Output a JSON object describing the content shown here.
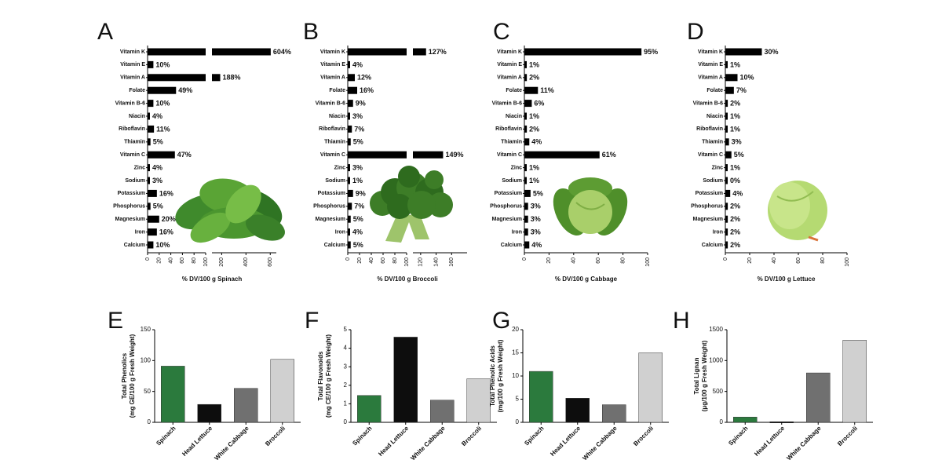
{
  "colors": {
    "bar": "#000000",
    "spinach": "#2b7a3d",
    "lettuce": "#0d0d0d",
    "cabbage": "#707070",
    "broccoli": "#d0d0d0"
  },
  "chart_data": [
    {
      "panel": "A",
      "type": "bar",
      "orientation": "horizontal",
      "xlabel": "% DV/100 g Spinach",
      "axis_break": true,
      "ticks_low": [
        "0",
        "20",
        "40",
        "60",
        "80",
        "100"
      ],
      "ticks_high": [
        "200",
        "400",
        "600"
      ],
      "ticks_high_values": [
        200,
        400,
        600
      ],
      "illustration": "spinach",
      "categories": [
        "Vitamin K",
        "Vitamin E",
        "Vitamin A",
        "Folate",
        "Vitamin B-6",
        "Niacin",
        "Riboflavin",
        "Thiamin",
        "Vitamin C",
        "Zinc",
        "Sodium",
        "Potassium",
        "Phosphorus",
        "Magnesium",
        "Iron",
        "Calcium"
      ],
      "values": [
        604,
        10,
        188,
        49,
        10,
        4,
        11,
        5,
        47,
        4,
        3,
        16,
        5,
        20,
        16,
        10
      ],
      "labels": [
        "604%",
        "10%",
        "188%",
        "49%",
        "10%",
        "4%",
        "11%",
        "5%",
        "47%",
        "4%",
        "3%",
        "16%",
        "5%",
        "20%",
        "16%",
        "10%"
      ]
    },
    {
      "panel": "B",
      "type": "bar",
      "orientation": "horizontal",
      "xlabel": "% DV/100 g  Broccoli",
      "axis_break": true,
      "ticks_low": [
        "0",
        "20",
        "40",
        "60",
        "80",
        "100"
      ],
      "ticks_high": [
        "120",
        "140",
        "160"
      ],
      "ticks_high_values": [
        120,
        140,
        160
      ],
      "illustration": "broccoli",
      "categories": [
        "Vitamin K",
        "Vitamin E",
        "Vitamin A",
        "Folate",
        "Vitamin B-6",
        "Niacin",
        "Riboflavin",
        "Thiamin",
        "Vitamin C",
        "Zinc",
        "Sodium",
        "Potassium",
        "Phosphorus",
        "Magnesium",
        "Iron",
        "Calcium"
      ],
      "values": [
        127,
        4,
        12,
        16,
        9,
        3,
        7,
        5,
        149,
        3,
        1,
        9,
        7,
        5,
        4,
        5
      ],
      "labels": [
        "127%",
        "4%",
        "12%",
        "16%",
        "9%",
        "3%",
        "7%",
        "5%",
        "149%",
        "3%",
        "1%",
        "9%",
        "7%",
        "5%",
        "4%",
        "5%"
      ]
    },
    {
      "panel": "C",
      "type": "bar",
      "orientation": "horizontal",
      "xlabel": "% DV/100 g  Cabbage",
      "axis_break": false,
      "ticks_low": [
        "0",
        "20",
        "40",
        "60",
        "80",
        "100"
      ],
      "illustration": "cabbage",
      "categories": [
        "Vitamin K",
        "Vitamin E",
        "Vitamin A",
        "Folate",
        "Vitamin B-6",
        "Niacin",
        "Riboflavin",
        "Thiamin",
        "Vitamin C",
        "Zinc",
        "Sodium",
        "Potassium",
        "Phosphorus",
        "Magnesium",
        "Iron",
        "Calcium"
      ],
      "values": [
        95,
        1,
        2,
        11,
        6,
        1,
        2,
        4,
        61,
        1,
        1,
        5,
        3,
        3,
        3,
        4
      ],
      "labels": [
        "95%",
        "1%",
        "2%",
        "11%",
        "6%",
        "1%",
        "2%",
        "4%",
        "61%",
        "1%",
        "1%",
        "5%",
        "3%",
        "3%",
        "3%",
        "4%"
      ]
    },
    {
      "panel": "D",
      "type": "bar",
      "orientation": "horizontal",
      "xlabel": "% DV/100  g Lettuce",
      "axis_break": false,
      "ticks_low": [
        "0",
        "20",
        "40",
        "60",
        "80",
        "100"
      ],
      "illustration": "lettuce",
      "categories": [
        "Vitamin K",
        "Vitamin E",
        "Vitamin A",
        "Folate",
        "Vitamin B-6",
        "Niacin",
        "Riboflavin",
        "Thiamin",
        "Vitamin C",
        "Zinc",
        "Sodium",
        "Potassium",
        "Phosphorus",
        "Magnesium",
        "Iron",
        "Calcium"
      ],
      "values": [
        30,
        1,
        10,
        7,
        2,
        1,
        1,
        3,
        5,
        1,
        0,
        4,
        2,
        2,
        2,
        2
      ],
      "labels": [
        "30%",
        "1%",
        "10%",
        "7%",
        "2%",
        "1%",
        "1%",
        "3%",
        "5%",
        "1%",
        "0%",
        "4%",
        "2%",
        "2%",
        "2%",
        "2%"
      ]
    },
    {
      "panel": "E",
      "type": "bar",
      "orientation": "vertical",
      "ylabel": [
        "Total Phenolics",
        "(mg GE/100 g Fresh Weight)"
      ],
      "ylim": [
        0,
        150
      ],
      "yticks": [
        "0",
        "50",
        "100",
        "150"
      ],
      "ytick_values": [
        0,
        50,
        100,
        150
      ],
      "categories": [
        "Spinach",
        "Head Lettuce",
        "White Cabbage",
        "Broccoli"
      ],
      "values": [
        91,
        29,
        55,
        102
      ]
    },
    {
      "panel": "F",
      "type": "bar",
      "orientation": "vertical",
      "ylabel": [
        "Total Flavonoids",
        "(mg CE/100 g Fresh Weight)"
      ],
      "ylim": [
        0,
        5
      ],
      "yticks": [
        "0",
        "1",
        "2",
        "3",
        "4",
        "5"
      ],
      "ytick_values": [
        0,
        1,
        2,
        3,
        4,
        5
      ],
      "categories": [
        "Spinach",
        "Head Lettuce",
        "White Cabbage",
        "Broccoli"
      ],
      "values": [
        1.45,
        4.6,
        1.2,
        2.35
      ]
    },
    {
      "panel": "G",
      "type": "bar",
      "orientation": "vertical",
      "ylabel": [
        "Total Phenolic Acids",
        "(mg/100 g Fresh Weight)"
      ],
      "ylim": [
        0,
        20
      ],
      "yticks": [
        "0",
        "5",
        "10",
        "15",
        "20"
      ],
      "ytick_values": [
        0,
        5,
        10,
        15,
        20
      ],
      "categories": [
        "Spinach",
        "Head Lettuce",
        "White Cabbage",
        "Broccoli"
      ],
      "values": [
        11,
        5.2,
        3.8,
        15
      ]
    },
    {
      "panel": "H",
      "type": "bar",
      "orientation": "vertical",
      "ylabel": [
        "Total Lignan",
        "(μg/100 g Fresh Weight)"
      ],
      "ylim": [
        0,
        1500
      ],
      "yticks": [
        "0",
        "500",
        "1000",
        "1500"
      ],
      "ytick_values": [
        0,
        500,
        1000,
        1500
      ],
      "categories": [
        "Spinach",
        "Head Lettuce",
        "White Cabbage",
        "Broccoli"
      ],
      "values": [
        85,
        10,
        800,
        1330
      ]
    }
  ]
}
